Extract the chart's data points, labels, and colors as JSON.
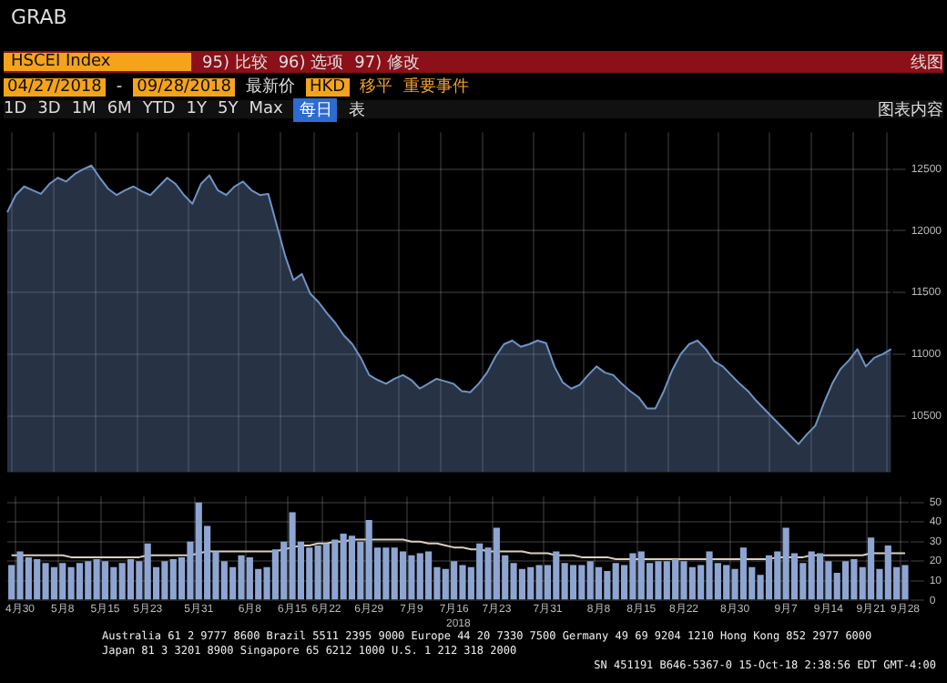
{
  "chart_data": [
    {
      "type": "area",
      "title": "HSCEI Index",
      "color": "#6f93c4",
      "annotations": [
        "GRAB",
        "95) 比较",
        "96) 选项",
        "97) 修改",
        "线图",
        "04/27/2018",
        "-",
        "09/28/2018",
        "最新价",
        "HKD",
        "移平",
        "重要事件",
        "1D",
        "3D",
        "1M",
        "6M",
        "YTD",
        "1Y",
        "5Y",
        "Max",
        "每日",
        "表",
        "图表内容"
      ],
      "categories": [
        null,
        null,
        null,
        null,
        null,
        null,
        null,
        null,
        null,
        null,
        null,
        null,
        null,
        null,
        null,
        null,
        null,
        null,
        null,
        null,
        null,
        null,
        null,
        null,
        null,
        null,
        null,
        null,
        null,
        null,
        null,
        null,
        null,
        null,
        null,
        null,
        null,
        null,
        null,
        null,
        null,
        null,
        null,
        null,
        null,
        null,
        null,
        null,
        null,
        null,
        null,
        null,
        null,
        null,
        null,
        null,
        null,
        null,
        null,
        null,
        null,
        null,
        null,
        null,
        null,
        null,
        null,
        null,
        null,
        null,
        null,
        null,
        null,
        null,
        null,
        null,
        null,
        null,
        null,
        null,
        null,
        null,
        null,
        null,
        null,
        null,
        null,
        null,
        null,
        null,
        null,
        null,
        null,
        null,
        null,
        null,
        null,
        null,
        null,
        null,
        null,
        null,
        null,
        null,
        null,
        null
      ],
      "values": [
        12150,
        12290,
        12360,
        12330,
        12300,
        12380,
        12430,
        12400,
        12460,
        12500,
        12530,
        12430,
        12340,
        12290,
        12330,
        12360,
        12320,
        12290,
        12360,
        12430,
        12380,
        12290,
        12220,
        12380,
        12450,
        12330,
        12290,
        12360,
        12400,
        12330,
        12290,
        12300,
        12050,
        11800,
        11600,
        11650,
        11490,
        11420,
        11330,
        11250,
        11150,
        11080,
        10970,
        10830,
        10790,
        10760,
        10800,
        10830,
        10790,
        10720,
        10760,
        10800,
        10780,
        10760,
        10700,
        10690,
        10760,
        10850,
        10980,
        11080,
        11110,
        11060,
        11080,
        11110,
        11090,
        10900,
        10770,
        10720,
        10750,
        10830,
        10900,
        10850,
        10830,
        10760,
        10700,
        10650,
        10560,
        10560,
        10700,
        10870,
        11000,
        11080,
        11110,
        11040,
        10940,
        10900,
        10830,
        10760,
        10700,
        10620,
        10550,
        10480,
        10410,
        10340,
        10270,
        10350,
        10420,
        10600,
        10760,
        10880,
        10950,
        11040,
        10900,
        10970,
        11000,
        11040
      ],
      "ylim": [
        10040,
        12800
      ],
      "yticks": [
        10500,
        11000,
        11500,
        12000,
        12500
      ],
      "grid": true,
      "tick_labels": "y"
    },
    {
      "type": "bar",
      "xlabel": "2018",
      "annotations": [
        "Australia 61 2 9777 8600 Brazil 5511 2395 9000 Europe 44 20 7330 7500 Germany 49 69 9204 1210 Hong Kong 852 2977 6000",
        "Japan 81 3 3201 8900 Singapore 65 6212 1000 U.S. 1 212 318 2000",
        "SN 451191 B646-5367-0 15-Oct-18 2:38:56 EDT GMT-4:00"
      ],
      "categories": [
        null,
        "4月30",
        null,
        null,
        null,
        null,
        "5月8",
        null,
        null,
        null,
        null,
        "5月15",
        null,
        null,
        null,
        null,
        "5月23",
        null,
        null,
        null,
        null,
        null,
        "5月31",
        null,
        null,
        null,
        null,
        null,
        "6月8",
        null,
        null,
        null,
        null,
        "6月15",
        null,
        null,
        null,
        "6月22",
        null,
        null,
        null,
        null,
        "6月29",
        null,
        null,
        null,
        null,
        "7月9",
        null,
        null,
        null,
        null,
        "7月16",
        null,
        null,
        null,
        null,
        "7月23",
        null,
        null,
        null,
        null,
        null,
        "7月31",
        null,
        null,
        null,
        null,
        null,
        "8月8",
        null,
        null,
        null,
        null,
        "8月15",
        null,
        null,
        null,
        null,
        "8月22",
        null,
        null,
        null,
        null,
        null,
        "8月30",
        null,
        null,
        null,
        null,
        null,
        "9月7",
        null,
        null,
        null,
        null,
        "9月14",
        null,
        null,
        null,
        null,
        "9月21",
        null,
        null,
        null,
        "9月28"
      ],
      "series": [
        {
          "type": "bar",
          "color": "#8ea5d2",
          "values": [
            18,
            25,
            22,
            21,
            19,
            17,
            19,
            17,
            19,
            20,
            21,
            20,
            17,
            19,
            21,
            20,
            29,
            17,
            20,
            21,
            22,
            30,
            50,
            38,
            25,
            20,
            17,
            23,
            22,
            16,
            17,
            26,
            30,
            45,
            30,
            27,
            28,
            29,
            31,
            34,
            33,
            30,
            41,
            27,
            27,
            27,
            25,
            23,
            24,
            25,
            17,
            16,
            20,
            18,
            17,
            29,
            27,
            37,
            23,
            19,
            16,
            17,
            18,
            18,
            25,
            19,
            18,
            18,
            20,
            17,
            15,
            19,
            18,
            24,
            25,
            19,
            20,
            20,
            21,
            20,
            17,
            18,
            25,
            19,
            18,
            16,
            27,
            17,
            13,
            23,
            25,
            37,
            24,
            19,
            25,
            24,
            20,
            14,
            20,
            21,
            17,
            32,
            16,
            28,
            17,
            18
          ]
        },
        {
          "type": "line",
          "color": "#d9cfbd",
          "values": [
            23,
            23,
            23,
            23,
            23,
            23,
            23,
            22,
            22,
            22,
            22,
            22,
            22,
            22,
            22,
            22,
            23,
            23,
            23,
            23,
            23,
            23,
            24,
            25,
            25,
            25,
            25,
            25,
            25,
            25,
            25,
            25,
            26,
            27,
            28,
            28,
            29,
            29,
            30,
            30,
            31,
            31,
            31,
            31,
            31,
            31,
            31,
            30,
            30,
            29,
            29,
            28,
            27,
            27,
            26,
            26,
            25,
            25,
            25,
            25,
            25,
            24,
            24,
            24,
            23,
            23,
            23,
            22,
            22,
            22,
            22,
            21,
            21,
            21,
            21,
            21,
            21,
            21,
            21,
            21,
            21,
            21,
            21,
            21,
            21,
            21,
            21,
            21,
            21,
            21,
            22,
            22,
            22,
            22,
            23,
            23,
            23,
            23,
            23,
            23,
            23,
            24,
            24,
            24,
            24,
            24
          ]
        }
      ],
      "ylim": [
        0,
        53
      ],
      "yticks": [
        0,
        10,
        20,
        30,
        40,
        50
      ],
      "grid": true
    }
  ]
}
